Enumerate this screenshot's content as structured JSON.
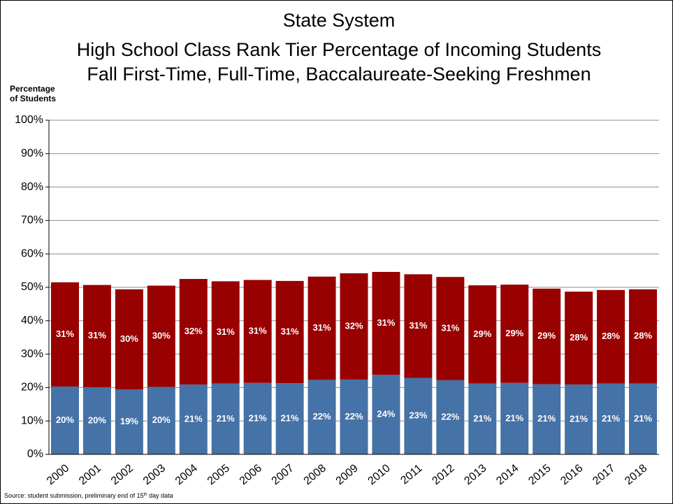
{
  "chart_data": {
    "type": "stacked-bar",
    "title": "State System",
    "subtitle": [
      "High School Class Rank Tier Percentage of Incoming Students",
      "Fall First-Time, Full-Time, Baccalaureate-Seeking Freshmen"
    ],
    "ylabel": [
      "Percentage",
      "of Students"
    ],
    "source": [
      "Source: student submission, preliminary end of 15",
      "th",
      " day data"
    ],
    "categories": [
      "2000",
      "2001",
      "2002",
      "2003",
      "2004",
      "2005",
      "2006",
      "2007",
      "2008",
      "2009",
      "2010",
      "2011",
      "2012",
      "2013",
      "2014",
      "2015",
      "2016",
      "2017",
      "2018"
    ],
    "series": [
      {
        "color": "#4572a7",
        "values": [
          20.3,
          20.1,
          19.4,
          20.2,
          20.9,
          21.2,
          21.4,
          21.3,
          22.3,
          22.4,
          23.8,
          22.9,
          22.2,
          21.2,
          21.4,
          21.0,
          20.9,
          21.2,
          21.2
        ],
        "value_labels": [
          "20%",
          "20%",
          "19%",
          "20%",
          "21%",
          "21%",
          "21%",
          "21%",
          "22%",
          "22%",
          "24%",
          "23%",
          "22%",
          "21%",
          "21%",
          "21%",
          "21%",
          "21%",
          "21%"
        ]
      },
      {
        "color": "#990000",
        "values": [
          31.2,
          30.6,
          30.0,
          30.3,
          31.6,
          30.6,
          30.8,
          30.6,
          30.9,
          31.8,
          30.8,
          31.0,
          30.9,
          29.4,
          29.4,
          28.6,
          27.8,
          28.0,
          28.2
        ],
        "value_labels": [
          "31%",
          "31%",
          "30%",
          "30%",
          "32%",
          "31%",
          "31%",
          "31%",
          "31%",
          "32%",
          "31%",
          "31%",
          "31%",
          "29%",
          "29%",
          "29%",
          "28%",
          "28%",
          "28%"
        ]
      }
    ],
    "ylim": [
      0,
      100
    ],
    "yticks": [
      {
        "value": 0,
        "label": "0%"
      },
      {
        "value": 10,
        "label": "10%"
      },
      {
        "value": 20,
        "label": "20%"
      },
      {
        "value": 30,
        "label": "30%"
      },
      {
        "value": 40,
        "label": "40%"
      },
      {
        "value": 50,
        "label": "50%"
      },
      {
        "value": 60,
        "label": "60%"
      },
      {
        "value": 70,
        "label": "70%"
      },
      {
        "value": 80,
        "label": "80%"
      },
      {
        "value": 90,
        "label": "90%"
      },
      {
        "value": 100,
        "label": "100%"
      }
    ],
    "grid": true
  }
}
